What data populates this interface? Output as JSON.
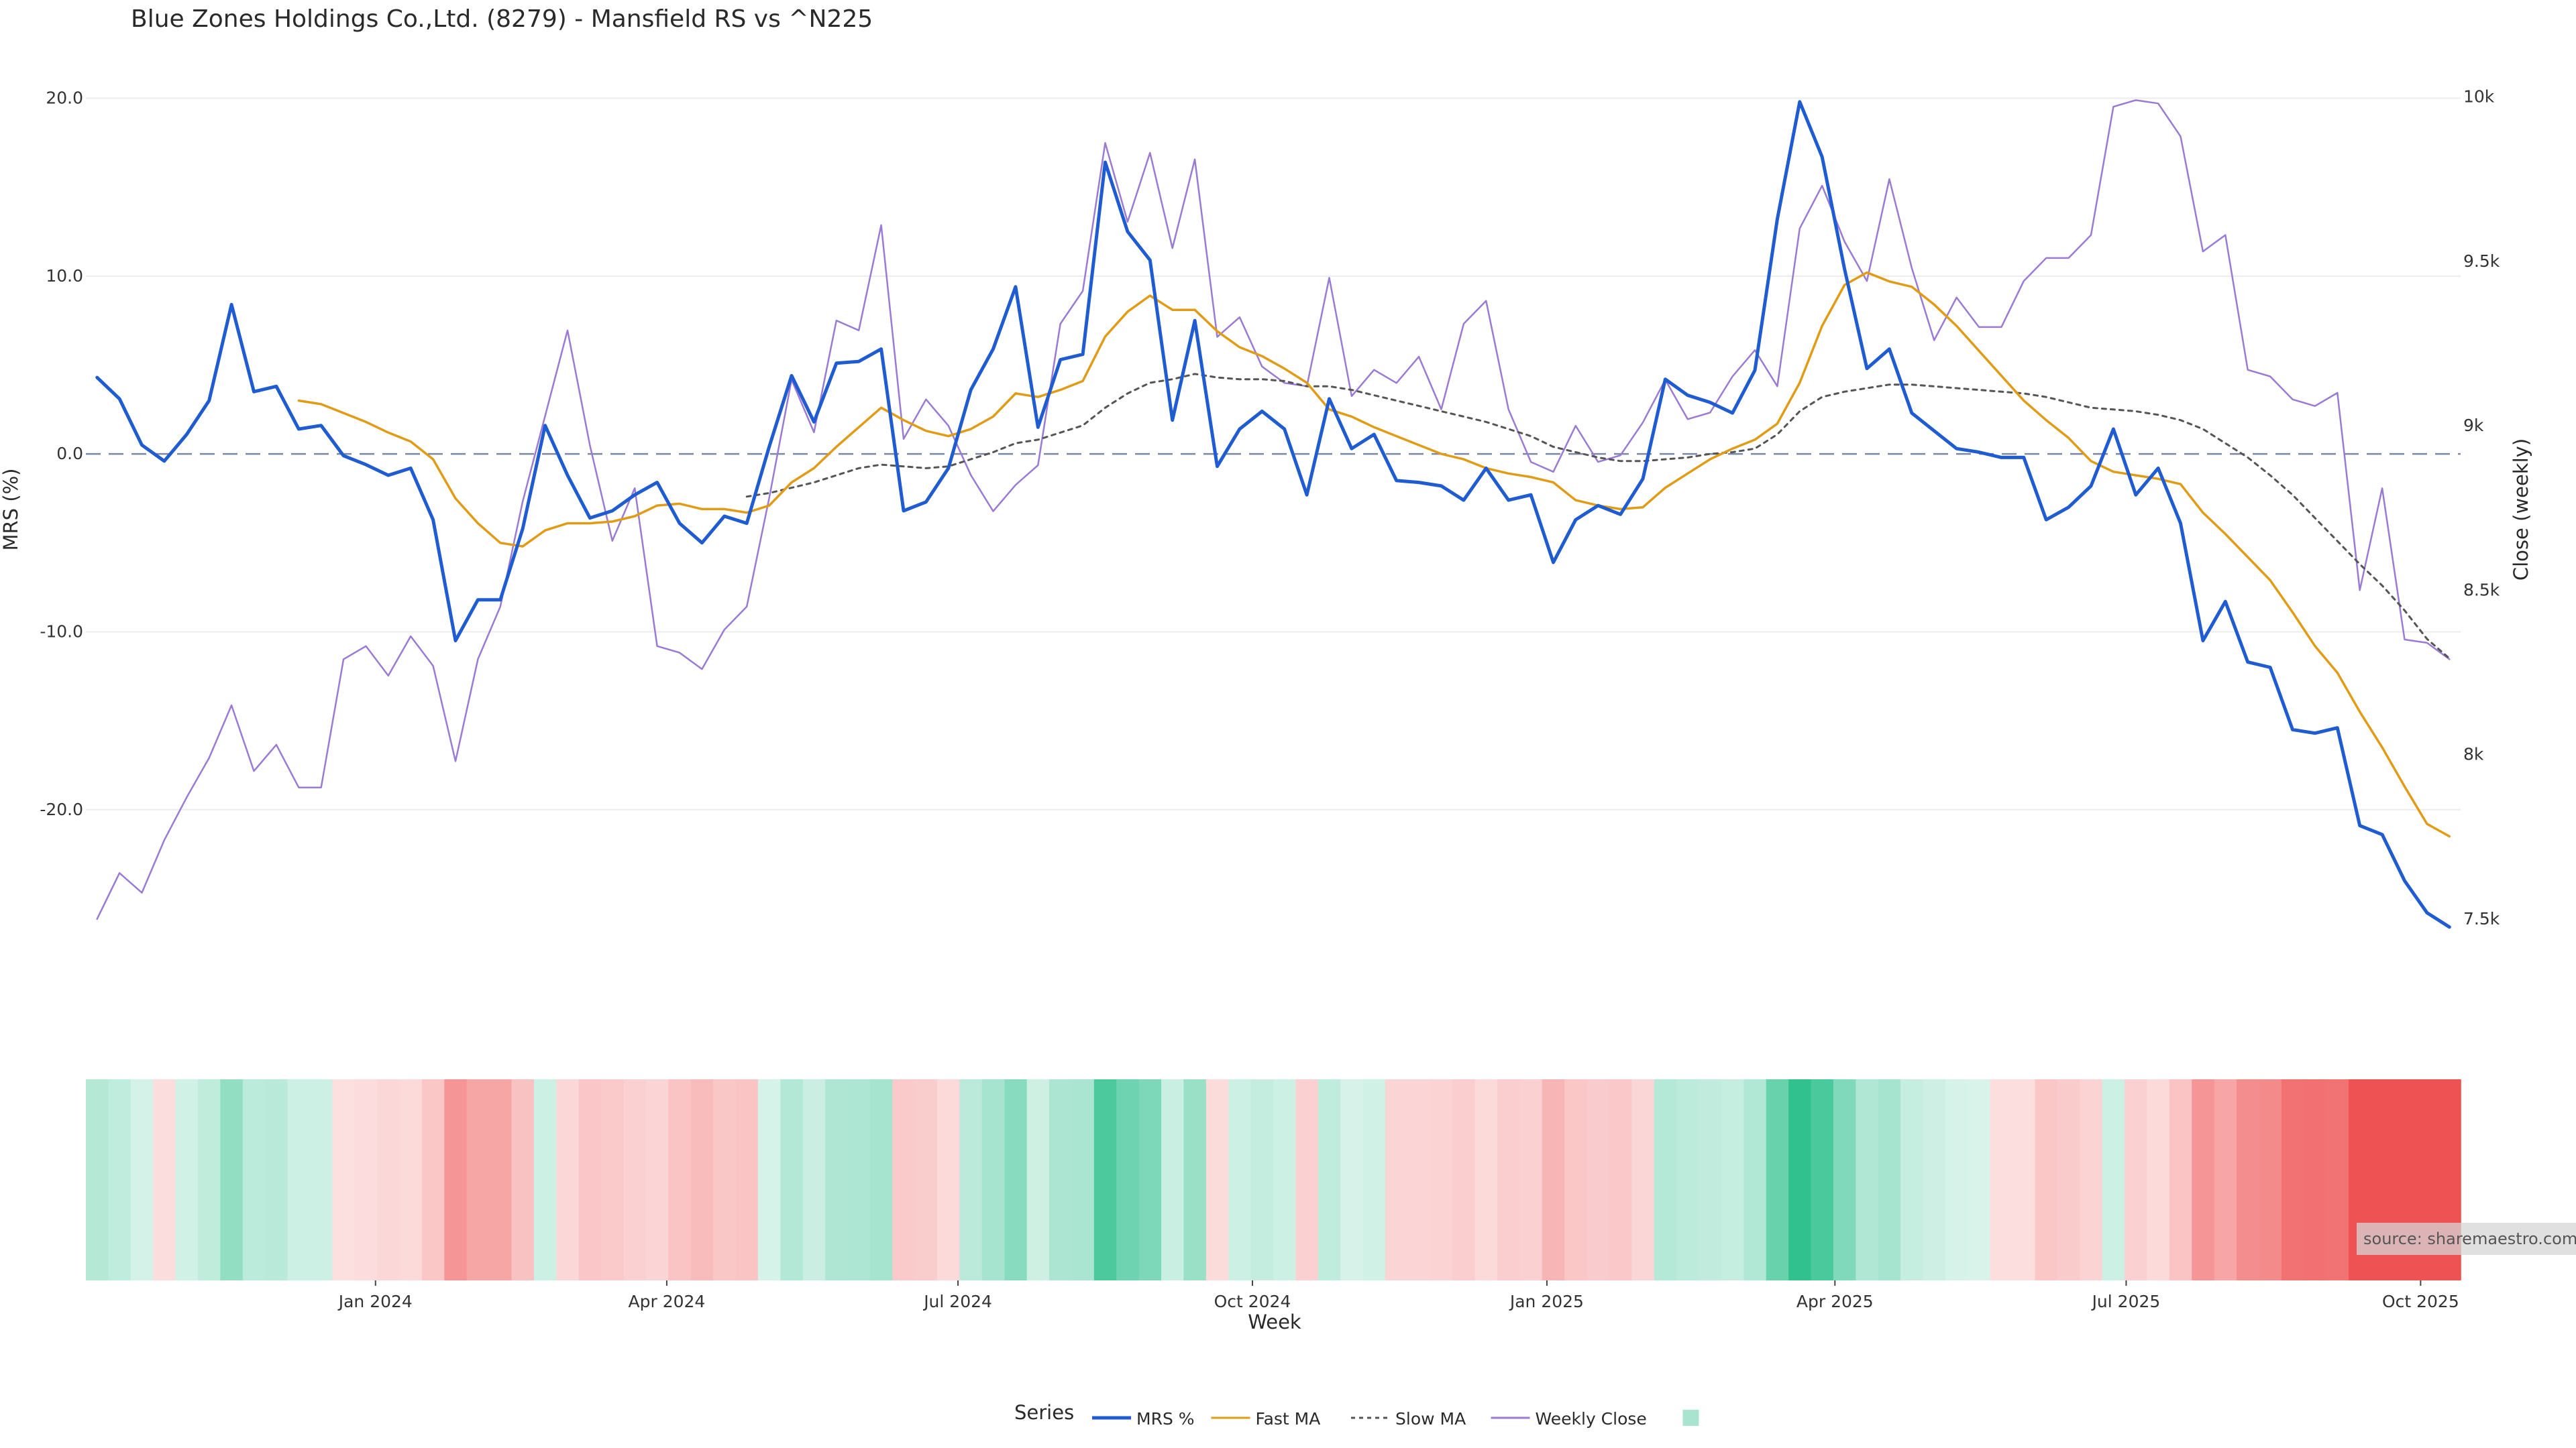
{
  "chart_data": {
    "type": "line",
    "title": "Blue Zones Holdings Co.,Ltd. (8279) - Mansfield RS vs ^N225",
    "xlabel": "Week",
    "ylabel_left": "MRS (%)",
    "ylabel_right": "Close (weekly)",
    "ylim_left": [
      -28,
      21
    ],
    "ylim_right": [
      7400,
      10050
    ],
    "left_ticks": [
      "20.0",
      "10.0",
      "0.0",
      "-10.0",
      "-20.0"
    ],
    "left_tick_values": [
      20,
      10,
      0,
      -10,
      -20
    ],
    "right_ticks": [
      "10k",
      "9.5k",
      "9k",
      "8.5k",
      "8k",
      "7.5k"
    ],
    "right_tick_values": [
      10000,
      9500,
      9000,
      8500,
      8000,
      7500
    ],
    "x_start": "2023-10-06",
    "x_ticks": [
      "Jan 2024",
      "Apr 2024",
      "Jul 2024",
      "Oct 2024",
      "Jan 2025",
      "Apr 2025",
      "Jul 2025",
      "Oct 2025"
    ],
    "x_tick_dates": [
      "2024-01-01",
      "2024-04-01",
      "2024-07-01",
      "2024-10-01",
      "2025-01-01",
      "2025-04-01",
      "2025-07-01",
      "2025-10-01"
    ],
    "zero_line": 0,
    "grid": true,
    "series": [
      {
        "name": "MRS %",
        "color": "#1f5bd1",
        "style": "solid",
        "values": [
          4.3,
          3.1,
          0.5,
          -0.4,
          1.1,
          3.0,
          8.4,
          3.5,
          3.8,
          1.4,
          1.6,
          -0.1,
          -0.6,
          -1.2,
          -0.8,
          -3.7,
          -10.5,
          -8.2,
          -8.2,
          -4.2,
          1.6,
          -1.2,
          -3.6,
          -3.2,
          -2.3,
          -1.6,
          -3.9,
          -5.0,
          -3.5,
          -3.9,
          0.4,
          4.4,
          1.8,
          5.1,
          5.2,
          5.9,
          -3.2,
          -2.7,
          -0.8,
          3.6,
          5.9,
          9.4,
          1.5,
          5.3,
          5.6,
          16.4,
          12.5,
          10.9,
          1.9,
          7.5,
          -0.7,
          1.4,
          2.4,
          1.4,
          -2.3,
          3.1,
          0.3,
          1.1,
          -1.5,
          -1.6,
          -1.8,
          -2.6,
          -0.8,
          -2.6,
          -2.3,
          -6.1,
          -3.7,
          -2.9,
          -3.4,
          -1.4,
          4.2,
          3.3,
          2.9,
          2.3,
          4.7,
          13.2,
          19.8,
          16.7,
          10.4,
          4.8,
          5.9,
          2.3,
          1.3,
          0.3,
          0.1,
          -0.2,
          -0.2,
          -3.7,
          -3.0,
          -1.8,
          1.4,
          -2.3,
          -0.8,
          -3.9,
          -10.5,
          -8.3,
          -11.7,
          -12.0,
          -15.5,
          -15.7,
          -15.4,
          -20.9,
          -21.4,
          -24.0,
          -25.8,
          -26.6
        ]
      },
      {
        "name": "Fast MA",
        "color": "#e09b17",
        "style": "solid",
        "values": [
          null,
          null,
          null,
          null,
          null,
          null,
          null,
          null,
          null,
          3.0,
          2.8,
          2.3,
          1.8,
          1.2,
          0.7,
          -0.3,
          -2.5,
          -3.9,
          -5.0,
          -5.2,
          -4.3,
          -3.9,
          -3.9,
          -3.8,
          -3.5,
          -2.9,
          -2.8,
          -3.1,
          -3.1,
          -3.3,
          -2.9,
          -1.6,
          -0.8,
          0.4,
          1.5,
          2.6,
          1.9,
          1.3,
          1.0,
          1.4,
          2.1,
          3.4,
          3.2,
          3.6,
          4.1,
          6.6,
          8.0,
          8.9,
          8.1,
          8.1,
          6.9,
          6.0,
          5.5,
          4.8,
          4.0,
          2.5,
          2.1,
          1.5,
          1.0,
          0.5,
          0.0,
          -0.3,
          -0.8,
          -1.1,
          -1.3,
          -1.6,
          -2.6,
          -2.9,
          -3.1,
          -3.0,
          -1.9,
          -1.1,
          -0.3,
          0.3,
          0.8,
          1.7,
          4.0,
          7.2,
          9.5,
          10.2,
          9.7,
          9.4,
          8.4,
          7.2,
          5.8,
          4.4,
          3.0,
          1.9,
          0.9,
          -0.4,
          -1.0,
          -1.2,
          -1.4,
          -1.7,
          -3.3,
          -4.5,
          -5.8,
          -7.1,
          -8.9,
          -10.8,
          -12.3,
          -14.5,
          -16.5,
          -18.7,
          -20.8,
          -21.5
        ]
      },
      {
        "name": "Slow MA",
        "color": "#555555",
        "style": "dotted",
        "values": [
          null,
          null,
          null,
          null,
          null,
          null,
          null,
          null,
          null,
          null,
          null,
          null,
          null,
          null,
          null,
          null,
          null,
          null,
          null,
          null,
          null,
          null,
          null,
          null,
          null,
          null,
          null,
          null,
          null,
          -2.4,
          -2.2,
          -1.9,
          -1.6,
          -1.2,
          -0.8,
          -0.6,
          -0.7,
          -0.8,
          -0.7,
          -0.3,
          0.1,
          0.6,
          0.8,
          1.2,
          1.6,
          2.6,
          3.4,
          4.0,
          4.2,
          4.5,
          4.3,
          4.2,
          4.2,
          4.1,
          3.8,
          3.8,
          3.6,
          3.3,
          3.0,
          2.7,
          2.4,
          2.1,
          1.8,
          1.4,
          1.0,
          0.4,
          0.1,
          -0.2,
          -0.4,
          -0.4,
          -0.3,
          -0.2,
          0.0,
          0.1,
          0.3,
          1.1,
          2.4,
          3.2,
          3.5,
          3.7,
          3.9,
          3.9,
          3.8,
          3.7,
          3.6,
          3.5,
          3.4,
          3.2,
          2.9,
          2.6,
          2.5,
          2.4,
          2.2,
          1.9,
          1.4,
          0.6,
          -0.2,
          -1.2,
          -2.3,
          -3.6,
          -4.9,
          -6.2,
          -7.4,
          -8.8,
          -10.4,
          -11.5
        ]
      },
      {
        "name": "Weekly Close",
        "color": "#9b7ad4",
        "style": "solid",
        "axis": "right",
        "values": [
          7500,
          7640,
          7580,
          7740,
          7870,
          7990,
          8150,
          7950,
          8030,
          7900,
          7900,
          8290,
          8330,
          8240,
          8360,
          8270,
          7980,
          8290,
          8450,
          8770,
          9030,
          9290,
          8940,
          8650,
          8810,
          8330,
          8310,
          8260,
          8380,
          8450,
          8780,
          9140,
          8980,
          9320,
          9290,
          9610,
          8960,
          9080,
          9000,
          8850,
          8740,
          8820,
          8880,
          9310,
          9410,
          9860,
          9620,
          9830,
          9540,
          9810,
          9270,
          9330,
          9180,
          9130,
          9120,
          9450,
          9090,
          9170,
          9130,
          9210,
          9050,
          9310,
          9380,
          9050,
          8890,
          8860,
          9000,
          8890,
          8910,
          9010,
          9140,
          9020,
          9040,
          9150,
          9230,
          9120,
          9600,
          9730,
          9560,
          9440,
          9750,
          9480,
          9260,
          9390,
          9300,
          9300,
          9440,
          9510,
          9510,
          9580,
          9970,
          9990,
          9980,
          9880,
          9530,
          9580,
          9170,
          9150,
          9080,
          9060,
          9100,
          8500,
          8810,
          8350,
          8340,
          8290
        ]
      }
    ],
    "rs_strip": {
      "values": [
        4.3,
        3.1,
        0.5,
        -0.4,
        1.1,
        3.0,
        8.4,
        3.5,
        3.8,
        1.4,
        1.6,
        -0.1,
        -0.6,
        -1.2,
        -0.8,
        -3.7,
        -10.5,
        -8.2,
        -8.2,
        -4.2,
        1.6,
        -1.2,
        -3.6,
        -3.2,
        -2.3,
        -1.6,
        -3.9,
        -5.0,
        -3.5,
        -3.9,
        0.4,
        4.4,
        1.8,
        5.1,
        5.2,
        5.9,
        -3.2,
        -2.7,
        -0.8,
        3.6,
        5.9,
        9.4,
        1.5,
        5.3,
        5.6,
        16.4,
        12.5,
        10.9,
        1.9,
        7.5,
        -0.7,
        1.4,
        2.4,
        1.4,
        -2.3,
        3.1,
        0.3,
        1.1,
        -1.5,
        -1.6,
        -1.8,
        -2.6,
        -0.8,
        -2.6,
        -2.3,
        -6.1,
        -3.7,
        -2.9,
        -3.4,
        -1.4,
        4.2,
        3.3,
        2.9,
        2.3,
        4.7,
        13.2,
        19.8,
        16.7,
        10.4,
        4.8,
        5.9,
        2.3,
        1.3,
        0.3,
        0.1,
        -0.2,
        -0.2,
        -3.7,
        -3.0,
        -1.8,
        1.4,
        -2.3,
        -0.8,
        -3.9,
        -10.5,
        -8.3,
        -11.7,
        -12.0,
        -15.5,
        -15.7,
        -15.4,
        -20.9,
        -21.4,
        -24.0,
        -25.8,
        -26.6
      ],
      "positive_color": "#2ec08d",
      "negative_color": "#ef5253"
    },
    "legend": {
      "title": "Series",
      "placement": "bottom-center",
      "items": [
        {
          "label": "MRS %",
          "color": "#1f5bd1",
          "style": "solid"
        },
        {
          "label": "Fast MA",
          "color": "#e09b17",
          "style": "solid"
        },
        {
          "label": "Slow MA",
          "color": "#555555",
          "style": "dotted"
        },
        {
          "label": "Weekly Close",
          "color": "#9b7ad4",
          "style": "solid"
        },
        {
          "label": "",
          "color": "#a8e4cf",
          "style": "swatch"
        }
      ]
    },
    "source": "source: sharemaestro.com"
  }
}
